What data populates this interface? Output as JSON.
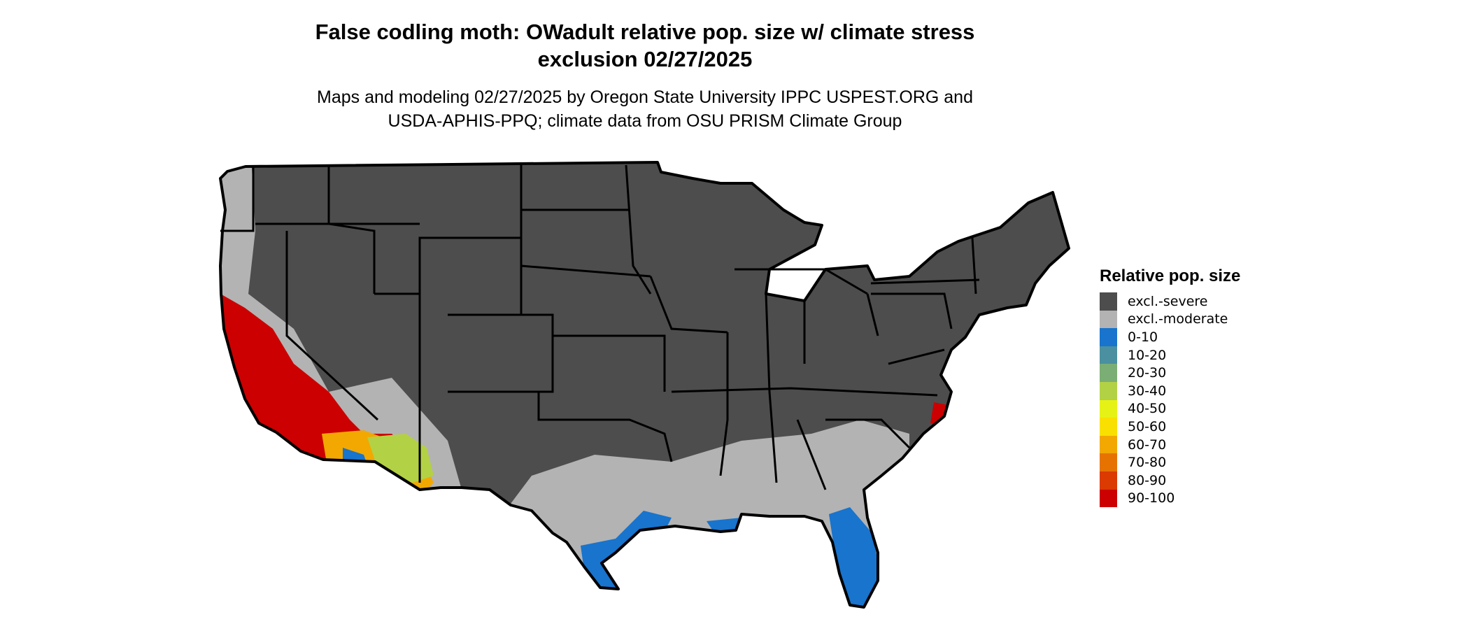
{
  "title_line1": "False codling moth: OWadult relative pop. size w/ climate stress",
  "title_line2": "exclusion 02/27/2025",
  "subtitle_line1": "Maps and modeling 02/27/2025 by Oregon State University IPPC USPEST.ORG and",
  "subtitle_line2": "USDA-APHIS-PPQ; climate data from OSU PRISM Climate Group",
  "legend": {
    "title": "Relative pop. size",
    "items": [
      {
        "label": "excl.-severe",
        "color": "#4d4d4d"
      },
      {
        "label": "excl.-moderate",
        "color": "#b3b3b3"
      },
      {
        "label": "0-10",
        "color": "#1874cd"
      },
      {
        "label": "10-20",
        "color": "#4a90a0"
      },
      {
        "label": "20-30",
        "color": "#7bae74"
      },
      {
        "label": "30-40",
        "color": "#b3d145"
      },
      {
        "label": "40-50",
        "color": "#e6f216"
      },
      {
        "label": "50-60",
        "color": "#f9e000"
      },
      {
        "label": "60-70",
        "color": "#f2a800"
      },
      {
        "label": "70-80",
        "color": "#e67300"
      },
      {
        "label": "80-90",
        "color": "#db3a00"
      },
      {
        "label": "90-100",
        "color": "#cc0000"
      }
    ]
  }
}
